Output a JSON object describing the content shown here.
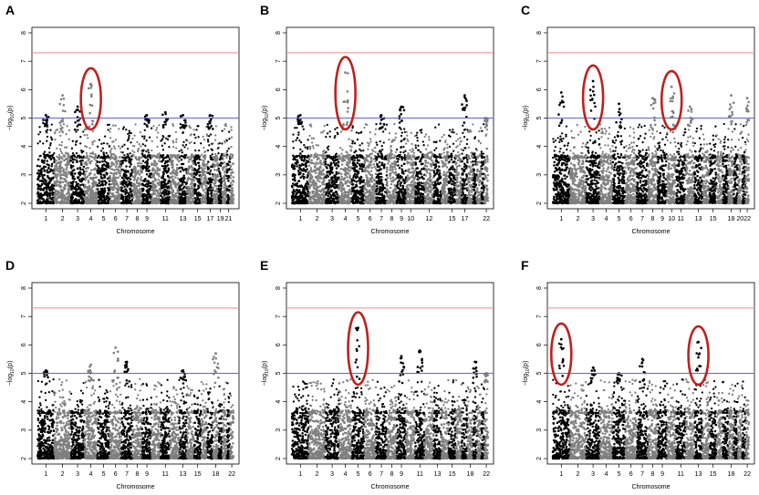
{
  "figure": {
    "description_panels": [
      "A",
      "B",
      "C",
      "D",
      "E",
      "F"
    ]
  },
  "colors": {
    "significance_line": "#f08a8a",
    "suggestive_line": "#5a64e6",
    "highlight": "#c0201c",
    "odd_chrom": "#000000",
    "even_chrom": "#7f7f7f"
  },
  "chart_data": [
    {
      "type": "scatter",
      "panel_label": "A",
      "xlabel": "Chromosome",
      "ylabel_main": "−log",
      "ylabel_sub": "10",
      "ylabel_arg": "(p)",
      "ylim": [
        2,
        8
      ],
      "yticks": [
        2,
        3,
        4,
        5,
        6,
        7,
        8
      ],
      "significance_threshold": 7.3,
      "suggestive_threshold": 5.0,
      "xtick_labels": [
        "1",
        "2",
        "3",
        "4",
        "5",
        "6",
        "7",
        "8",
        "9",
        "11",
        "13",
        "15",
        "17",
        "19",
        "21"
      ],
      "xtick_chromosomes": [
        1,
        2,
        3,
        4,
        5,
        6,
        7,
        8,
        9,
        11,
        13,
        15,
        17,
        19,
        21
      ],
      "peaks": [
        {
          "chromosome": 1,
          "max": 5.1
        },
        {
          "chromosome": 2,
          "max": 5.8
        },
        {
          "chromosome": 3,
          "max": 5.4
        },
        {
          "chromosome": 4,
          "max": 6.2
        },
        {
          "chromosome": 9,
          "max": 5.1
        },
        {
          "chromosome": 11,
          "max": 5.2
        },
        {
          "chromosome": 13,
          "max": 5.1
        },
        {
          "chromosome": 17,
          "max": 5.1
        }
      ],
      "highlight_chromosomes": [
        4
      ]
    },
    {
      "type": "scatter",
      "panel_label": "B",
      "xlabel": "Chromosome",
      "ylabel_main": "−log",
      "ylabel_sub": "10",
      "ylabel_arg": "(p)",
      "ylim": [
        2,
        8
      ],
      "yticks": [
        2,
        3,
        4,
        5,
        6,
        7,
        8
      ],
      "significance_threshold": 7.3,
      "suggestive_threshold": 5.0,
      "xtick_labels": [
        "1",
        "2",
        "3",
        "4",
        "5",
        "6",
        "7",
        "8",
        "9",
        "10",
        "12",
        "15",
        "17",
        "22"
      ],
      "xtick_chromosomes": [
        1,
        2,
        3,
        4,
        5,
        6,
        7,
        8,
        9,
        10,
        12,
        15,
        17,
        22
      ],
      "peaks": [
        {
          "chromosome": 1,
          "max": 5.1
        },
        {
          "chromosome": 4,
          "max": 6.6
        },
        {
          "chromosome": 7,
          "max": 5.1
        },
        {
          "chromosome": 9,
          "max": 5.4
        },
        {
          "chromosome": 17,
          "max": 5.8
        },
        {
          "chromosome": 22,
          "max": 5.0
        }
      ],
      "highlight_chromosomes": [
        4
      ]
    },
    {
      "type": "scatter",
      "panel_label": "C",
      "xlabel": "Chromosome",
      "ylabel_main": "−log",
      "ylabel_sub": "10",
      "ylabel_arg": "(p)",
      "ylim": [
        2,
        8
      ],
      "yticks": [
        2,
        3,
        4,
        5,
        6,
        7,
        8
      ],
      "significance_threshold": 7.3,
      "suggestive_threshold": 5.0,
      "xtick_labels": [
        "1",
        "2",
        "3",
        "4",
        "5",
        "6",
        "7",
        "8",
        "9",
        "10",
        "11",
        "13",
        "15",
        "18",
        "20",
        "22"
      ],
      "xtick_chromosomes": [
        1,
        2,
        3,
        4,
        5,
        6,
        7,
        8,
        9,
        10,
        11,
        13,
        15,
        18,
        20,
        22
      ],
      "peaks": [
        {
          "chromosome": 1,
          "max": 5.9
        },
        {
          "chromosome": 3,
          "max": 6.3
        },
        {
          "chromosome": 5,
          "max": 5.5
        },
        {
          "chromosome": 8,
          "max": 5.7
        },
        {
          "chromosome": 10,
          "max": 6.1
        },
        {
          "chromosome": 12,
          "max": 5.4
        },
        {
          "chromosome": 18,
          "max": 5.8
        },
        {
          "chromosome": 22,
          "max": 5.7
        }
      ],
      "highlight_chromosomes": [
        3,
        10
      ]
    },
    {
      "type": "scatter",
      "panel_label": "D",
      "xlabel": "Chromosome",
      "ylabel_main": "−log",
      "ylabel_sub": "10",
      "ylabel_arg": "(p)",
      "ylim": [
        2,
        8
      ],
      "yticks": [
        2,
        3,
        4,
        5,
        6,
        7,
        8
      ],
      "significance_threshold": 7.3,
      "suggestive_threshold": 5.0,
      "xtick_labels": [
        "1",
        "2",
        "3",
        "4",
        "5",
        "6",
        "7",
        "8",
        "9",
        "11",
        "13",
        "15",
        "18",
        "22"
      ],
      "xtick_chromosomes": [
        1,
        2,
        3,
        4,
        5,
        6,
        7,
        8,
        9,
        11,
        13,
        15,
        18,
        22
      ],
      "peaks": [
        {
          "chromosome": 1,
          "max": 5.1
        },
        {
          "chromosome": 4,
          "max": 5.3
        },
        {
          "chromosome": 6,
          "max": 5.9
        },
        {
          "chromosome": 7,
          "max": 5.4
        },
        {
          "chromosome": 13,
          "max": 5.1
        },
        {
          "chromosome": 18,
          "max": 5.7
        }
      ],
      "highlight_chromosomes": []
    },
    {
      "type": "scatter",
      "panel_label": "E",
      "xlabel": "Chromosome",
      "ylabel_main": "−log",
      "ylabel_sub": "10",
      "ylabel_arg": "(p)",
      "ylim": [
        2,
        8
      ],
      "yticks": [
        2,
        3,
        4,
        5,
        6,
        7,
        8
      ],
      "significance_threshold": 7.3,
      "suggestive_threshold": 5.0,
      "xtick_labels": [
        "1",
        "2",
        "3",
        "4",
        "5",
        "6",
        "7",
        "8",
        "9",
        "11",
        "13",
        "15",
        "18",
        "22"
      ],
      "xtick_chromosomes": [
        1,
        2,
        3,
        4,
        5,
        6,
        7,
        8,
        9,
        11,
        13,
        15,
        18,
        22
      ],
      "peaks": [
        {
          "chromosome": 5,
          "max": 6.6
        },
        {
          "chromosome": 9,
          "max": 5.6
        },
        {
          "chromosome": 11,
          "max": 5.8
        },
        {
          "chromosome": 19,
          "max": 5.4
        },
        {
          "chromosome": 22,
          "max": 5.0
        }
      ],
      "highlight_chromosomes": [
        5
      ]
    },
    {
      "type": "scatter",
      "panel_label": "F",
      "xlabel": "Chromosome",
      "ylabel_main": "−log",
      "ylabel_sub": "10",
      "ylabel_arg": "(p)",
      "ylim": [
        2,
        8
      ],
      "yticks": [
        2,
        3,
        4,
        5,
        6,
        7,
        8
      ],
      "significance_threshold": 7.3,
      "suggestive_threshold": 5.0,
      "xtick_labels": [
        "1",
        "2",
        "3",
        "4",
        "5",
        "6",
        "7",
        "8",
        "9",
        "11",
        "13",
        "15",
        "18",
        "22"
      ],
      "xtick_chromosomes": [
        1,
        2,
        3,
        4,
        5,
        6,
        7,
        8,
        9,
        11,
        13,
        15,
        18,
        22
      ],
      "peaks": [
        {
          "chromosome": 1,
          "max": 6.2
        },
        {
          "chromosome": 3,
          "max": 5.2
        },
        {
          "chromosome": 5,
          "max": 5.0
        },
        {
          "chromosome": 7,
          "max": 5.5
        },
        {
          "chromosome": 13,
          "max": 6.1
        }
      ],
      "highlight_chromosomes": [
        1,
        13
      ]
    }
  ]
}
